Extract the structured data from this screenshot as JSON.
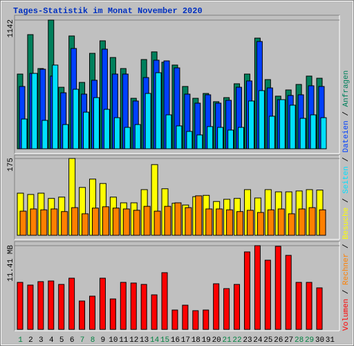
{
  "chart_data": [
    {
      "type": "bar",
      "title": "Tages-Statistik im Monat November 2020",
      "ylim": [
        0,
        1142
      ],
      "yticks": [
        1142
      ],
      "series": [
        {
          "name": "Anfragen",
          "color": "#00805c",
          "values": [
            663,
            1013,
            712,
            1142,
            546,
            1001,
            589,
            847,
            958,
            810,
            712,
            448,
            792,
            860,
            768,
            743,
            553,
            448,
            491,
            418,
            454,
            577,
            663,
            982,
            614,
            467,
            522,
            571,
            645,
            626,
            null
          ]
        },
        {
          "name": "Dateien",
          "color": "#0040ff",
          "values": [
            553,
            669,
            706,
            645,
            497,
            890,
            485,
            608,
            884,
            663,
            663,
            424,
            632,
            786,
            780,
            718,
            485,
            405,
            479,
            405,
            430,
            546,
            602,
            952,
            540,
            436,
            473,
            479,
            559,
            553,
            null
          ]
        },
        {
          "name": "Seiten",
          "color": "#00e0ff",
          "values": [
            264,
            669,
            252,
            743,
            215,
            528,
            325,
            454,
            350,
            276,
            190,
            215,
            491,
            675,
            301,
            203,
            154,
            123,
            197,
            190,
            166,
            190,
            424,
            516,
            289,
            436,
            387,
            270,
            301,
            276,
            null
          ]
        }
      ]
    },
    {
      "type": "bar",
      "ylim": [
        0,
        175
      ],
      "yticks": [
        175
      ],
      "series": [
        {
          "name": "Besuche",
          "color": "#ffff00",
          "values": [
            96,
            93,
            96,
            84,
            87,
            175,
            109,
            128,
            118,
            87,
            74,
            74,
            104,
            161,
            106,
            73,
            69,
            88,
            91,
            77,
            82,
            84,
            104,
            85,
            104,
            99,
            99,
            101,
            104,
            103,
            null
          ]
        },
        {
          "name": "Rechner",
          "color": "#ff8000",
          "values": [
            55,
            60,
            58,
            60,
            54,
            63,
            49,
            62,
            65,
            62,
            60,
            57,
            66,
            55,
            66,
            74,
            63,
            90,
            60,
            60,
            58,
            54,
            57,
            52,
            58,
            60,
            49,
            60,
            63,
            58,
            null
          ]
        }
      ]
    },
    {
      "type": "bar",
      "ylim": [
        0,
        11.41
      ],
      "yticks": [
        {
          "value": 11.41,
          "label": "11.41 MB"
        }
      ],
      "categories": [
        "1",
        "2",
        "3",
        "4",
        "5",
        "6",
        "7",
        "8",
        "9",
        "10",
        "11",
        "12",
        "13",
        "14",
        "15",
        "16",
        "17",
        "18",
        "19",
        "20",
        "21",
        "22",
        "23",
        "24",
        "25",
        "26",
        "27",
        "28",
        "29",
        "30",
        "31"
      ],
      "category_colors": [
        "#008040",
        "#000000",
        "#000000",
        "#000000",
        "#000000",
        "#000000",
        "#008040",
        "#008040",
        "#000000",
        "#000000",
        "#000000",
        "#000000",
        "#000000",
        "#008040",
        "#008040",
        "#000000",
        "#000000",
        "#000000",
        "#000000",
        "#000000",
        "#008040",
        "#008040",
        "#000000",
        "#000000",
        "#000000",
        "#000000",
        "#000000",
        "#008040",
        "#008040",
        "#000000",
        "#000000"
      ],
      "legend_separator": "/",
      "series": [
        {
          "name": "Volumen",
          "color": "#ff0000",
          "values": [
            6.41,
            6.04,
            6.51,
            6.6,
            6.13,
            6.98,
            3.87,
            4.53,
            6.98,
            4.15,
            6.41,
            6.32,
            6.13,
            4.71,
            7.73,
            2.64,
            3.3,
            2.55,
            2.64,
            6.22,
            5.56,
            6.13,
            10.56,
            11.41,
            9.43,
            11.32,
            10.09,
            6.41,
            6.41,
            5.66,
            null
          ]
        }
      ]
    }
  ]
}
